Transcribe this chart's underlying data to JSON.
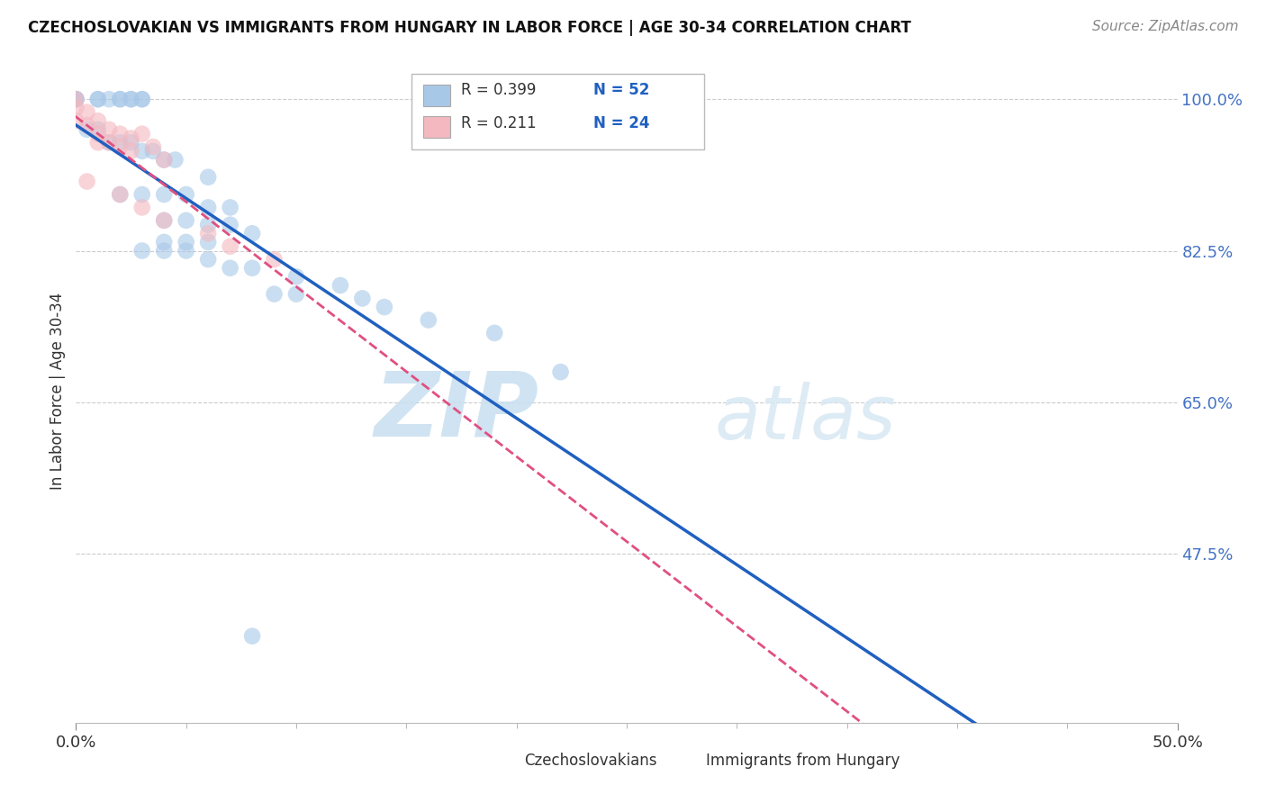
{
  "title": "CZECHOSLOVAKIAN VS IMMIGRANTS FROM HUNGARY IN LABOR FORCE | AGE 30-34 CORRELATION CHART",
  "source": "Source: ZipAtlas.com",
  "ylabel": "In Labor Force | Age 30-34",
  "xmin": 0.0,
  "xmax": 0.5,
  "ymin": 0.28,
  "ymax": 1.045,
  "ytick_vals": [
    1.0,
    0.825,
    0.65,
    0.475
  ],
  "ytick_labels": [
    "100.0%",
    "82.5%",
    "65.0%",
    "47.5%"
  ],
  "xtick_vals": [
    0.0,
    0.5
  ],
  "xtick_labels": [
    "0.0%",
    "50.0%"
  ],
  "legend_blue_r": "R = 0.399",
  "legend_blue_n": "N = 52",
  "legend_pink_r": "R = 0.211",
  "legend_pink_n": "N = 24",
  "legend_label1": "Czechoslovakians",
  "legend_label2": "Immigrants from Hungary",
  "blue_color": "#a8c8e8",
  "pink_color": "#f4b8c0",
  "blue_line_color": "#2060c0",
  "pink_line_color": "#e05080",
  "blue_scatter": [
    [
      0.0,
      1.0
    ],
    [
      0.0,
      1.0
    ],
    [
      0.0,
      1.0
    ],
    [
      0.01,
      1.0
    ],
    [
      0.01,
      1.0
    ],
    [
      0.015,
      1.0
    ],
    [
      0.02,
      1.0
    ],
    [
      0.02,
      1.0
    ],
    [
      0.025,
      1.0
    ],
    [
      0.025,
      1.0
    ],
    [
      0.03,
      1.0
    ],
    [
      0.03,
      1.0
    ],
    [
      0.005,
      0.965
    ],
    [
      0.01,
      0.965
    ],
    [
      0.015,
      0.95
    ],
    [
      0.02,
      0.95
    ],
    [
      0.025,
      0.95
    ],
    [
      0.03,
      0.94
    ],
    [
      0.035,
      0.94
    ],
    [
      0.04,
      0.93
    ],
    [
      0.045,
      0.93
    ],
    [
      0.06,
      0.91
    ],
    [
      0.02,
      0.89
    ],
    [
      0.03,
      0.89
    ],
    [
      0.04,
      0.89
    ],
    [
      0.05,
      0.89
    ],
    [
      0.06,
      0.875
    ],
    [
      0.07,
      0.875
    ],
    [
      0.04,
      0.86
    ],
    [
      0.05,
      0.86
    ],
    [
      0.06,
      0.855
    ],
    [
      0.07,
      0.855
    ],
    [
      0.08,
      0.845
    ],
    [
      0.04,
      0.835
    ],
    [
      0.05,
      0.835
    ],
    [
      0.06,
      0.835
    ],
    [
      0.03,
      0.825
    ],
    [
      0.04,
      0.825
    ],
    [
      0.05,
      0.825
    ],
    [
      0.06,
      0.815
    ],
    [
      0.07,
      0.805
    ],
    [
      0.08,
      0.805
    ],
    [
      0.1,
      0.795
    ],
    [
      0.12,
      0.785
    ],
    [
      0.09,
      0.775
    ],
    [
      0.1,
      0.775
    ],
    [
      0.13,
      0.77
    ],
    [
      0.14,
      0.76
    ],
    [
      0.16,
      0.745
    ],
    [
      0.19,
      0.73
    ],
    [
      0.22,
      0.685
    ],
    [
      0.08,
      0.38
    ]
  ],
  "pink_scatter": [
    [
      0.0,
      1.0
    ],
    [
      0.0,
      0.99
    ],
    [
      0.0,
      0.975
    ],
    [
      0.005,
      0.985
    ],
    [
      0.005,
      0.97
    ],
    [
      0.01,
      0.975
    ],
    [
      0.01,
      0.96
    ],
    [
      0.01,
      0.95
    ],
    [
      0.015,
      0.965
    ],
    [
      0.015,
      0.95
    ],
    [
      0.02,
      0.96
    ],
    [
      0.02,
      0.945
    ],
    [
      0.025,
      0.955
    ],
    [
      0.025,
      0.94
    ],
    [
      0.03,
      0.96
    ],
    [
      0.035,
      0.945
    ],
    [
      0.04,
      0.93
    ],
    [
      0.005,
      0.905
    ],
    [
      0.02,
      0.89
    ],
    [
      0.03,
      0.875
    ],
    [
      0.04,
      0.86
    ],
    [
      0.06,
      0.845
    ],
    [
      0.07,
      0.83
    ],
    [
      0.09,
      0.815
    ]
  ],
  "watermark_zip": "ZIP",
  "watermark_atlas": "atlas",
  "grid_color": "#cccccc",
  "background_color": "#ffffff"
}
